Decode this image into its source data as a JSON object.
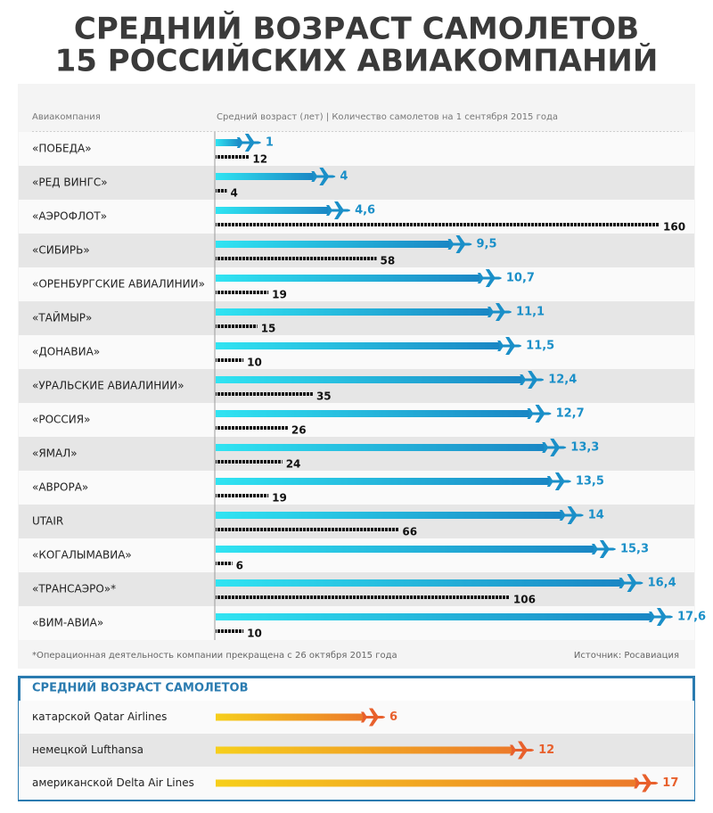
{
  "chart_data": [
    {
      "type": "bar",
      "title": [
        "СРЕДНИЙ ВОЗРАСТ САМОЛЕТОВ",
        "15 РОССИЙСКИХ АВИАКОМПАНИЙ"
      ],
      "category_header": "Авиакомпания",
      "value_header": "Средний возраст (лет) | Количество самолетов на 1 сентября 2015 года",
      "categories": [
        "«ПОБЕДА»",
        "«РЕД ВИНГС»",
        "«АЭРОФЛОТ»",
        "«СИБИРЬ»",
        "«ОРЕНБУРГСКИЕ АВИАЛИНИИ»",
        "«ТАЙМЫР»",
        "«ДОНАВИА»",
        "«УРАЛЬСКИЕ АВИАЛИНИИ»",
        "«РОССИЯ»",
        "«ЯМАЛ»",
        "«АВРОРА»",
        "UTAIR",
        "«КОГАЛЫМАВИА»",
        "«ТРАНСАЭРО»*",
        "«ВИМ-АВИА»"
      ],
      "series": [
        {
          "color": "#1a8fc8",
          "values": [
            1,
            4,
            4.6,
            9.5,
            10.7,
            11.1,
            11.5,
            12.4,
            12.7,
            13.3,
            13.5,
            14,
            15.3,
            16.4,
            17.6
          ],
          "value_labels": [
            "1",
            "4",
            "4,6",
            "9,5",
            "10,7",
            "11,1",
            "11,5",
            "12,4",
            "12,7",
            "13,3",
            "13,5",
            "14",
            "15,3",
            "16,4",
            "17,6"
          ]
        },
        {
          "color": "#111111",
          "values": [
            12,
            4,
            160,
            58,
            19,
            15,
            10,
            35,
            26,
            24,
            19,
            66,
            6,
            106,
            10
          ]
        }
      ],
      "footnote": "*Операционная деятельность компании прекращена с 26 октября 2015 года",
      "source": "Источник: Росавиация"
    },
    {
      "type": "bar",
      "title": "СРЕДНИЙ ВОЗРАСТ САМОЛЕТОВ",
      "categories": [
        "катарской Qatar Airlines",
        "немецкой Lufthansa",
        "американской Delta Air Lines"
      ],
      "color": "#e8602c",
      "values": [
        6,
        12,
        17
      ]
    }
  ]
}
